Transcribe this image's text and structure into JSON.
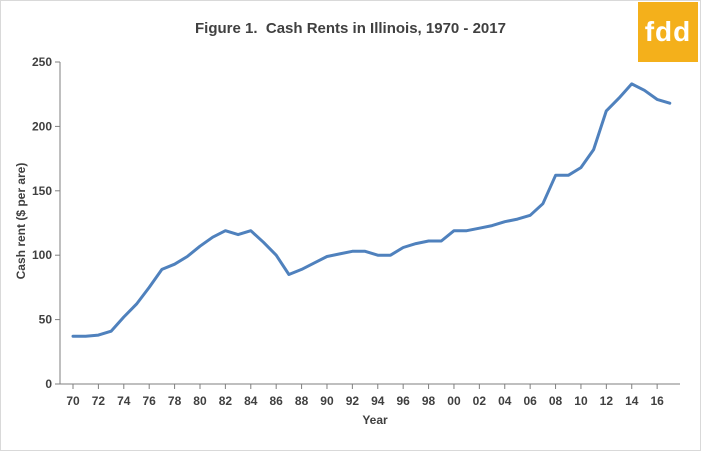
{
  "title": "Figure 1.  Cash Rents in Illinois, 1970 - 2017",
  "logo_text": "fdd",
  "colors": {
    "line": "#4f81bd",
    "axis": "#7f7f7f",
    "logo": "#f4b01b",
    "text": "#404040"
  },
  "chart_data": {
    "type": "line",
    "title": "Figure 1.  Cash Rents in Illinois, 1970 - 2017",
    "xlabel": "Year",
    "ylabel": "Cash rent ($ per are)",
    "ylim": [
      0,
      250
    ],
    "yticks": [
      0,
      50,
      100,
      150,
      200,
      250
    ],
    "grid": false,
    "x": [
      1970,
      1971,
      1972,
      1973,
      1974,
      1975,
      1976,
      1977,
      1978,
      1979,
      1980,
      1981,
      1982,
      1983,
      1984,
      1985,
      1986,
      1987,
      1988,
      1989,
      1990,
      1991,
      1992,
      1993,
      1994,
      1995,
      1996,
      1997,
      1998,
      1999,
      2000,
      2001,
      2002,
      2003,
      2004,
      2005,
      2006,
      2007,
      2008,
      2009,
      2010,
      2011,
      2012,
      2013,
      2014,
      2015,
      2016,
      2017
    ],
    "xtick_labels": [
      "70",
      "72",
      "74",
      "76",
      "78",
      "80",
      "82",
      "84",
      "86",
      "88",
      "90",
      "92",
      "94",
      "96",
      "98",
      "00",
      "02",
      "04",
      "06",
      "08",
      "10",
      "12",
      "14",
      "16"
    ],
    "xtick_years": [
      1970,
      1972,
      1974,
      1976,
      1978,
      1980,
      1982,
      1984,
      1986,
      1988,
      1990,
      1992,
      1994,
      1996,
      1998,
      2000,
      2002,
      2004,
      2006,
      2008,
      2010,
      2012,
      2014,
      2016
    ],
    "series": [
      {
        "values": [
          37,
          37,
          38,
          41,
          52,
          62,
          75,
          89,
          93,
          99,
          107,
          114,
          119,
          116,
          119,
          110,
          100,
          85,
          89,
          94,
          99,
          101,
          103,
          103,
          100,
          100,
          106,
          109,
          111,
          111,
          119,
          119,
          121,
          123,
          126,
          128,
          131,
          140,
          162,
          162,
          168,
          182,
          212,
          222,
          233,
          228,
          221,
          218
        ]
      }
    ]
  }
}
